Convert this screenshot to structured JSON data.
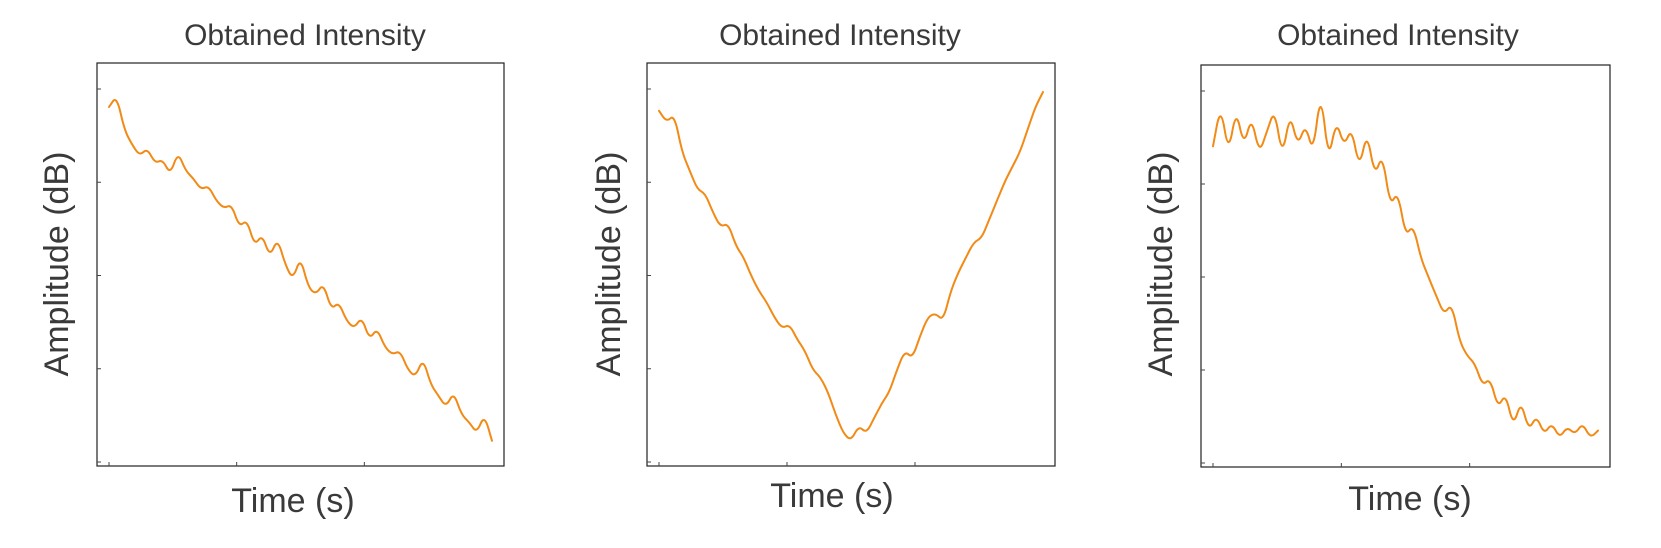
{
  "colors": {
    "series": "#f28a16",
    "frame": "#222222",
    "text": "#3a3a3a"
  },
  "chart_data": [
    {
      "type": "line",
      "title": "Obtained Intensity",
      "xlabel": "Time (s)",
      "ylabel": "Amplitude (dB)",
      "x_tick_labels": [],
      "y_tick_labels": [],
      "grid": false,
      "series": [
        {
          "values": [
            0.92,
            0.95,
            0.86,
            0.82,
            0.79,
            0.81,
            0.77,
            0.78,
            0.74,
            0.8,
            0.75,
            0.73,
            0.7,
            0.71,
            0.67,
            0.65,
            0.66,
            0.6,
            0.62,
            0.55,
            0.58,
            0.52,
            0.57,
            0.5,
            0.46,
            0.52,
            0.44,
            0.42,
            0.45,
            0.38,
            0.4,
            0.35,
            0.33,
            0.36,
            0.3,
            0.33,
            0.28,
            0.26,
            0.27,
            0.22,
            0.2,
            0.25,
            0.18,
            0.15,
            0.12,
            0.16,
            0.1,
            0.08,
            0.05,
            0.1,
            0.03
          ]
        }
      ]
    },
    {
      "type": "line",
      "title": "Obtained Intensity",
      "xlabel": "Time (s)",
      "ylabel": "Amplitude (dB)",
      "x_tick_labels": [],
      "y_tick_labels": [],
      "grid": false,
      "series": [
        {
          "values": [
            0.91,
            0.88,
            0.9,
            0.8,
            0.75,
            0.7,
            0.69,
            0.64,
            0.6,
            0.61,
            0.55,
            0.52,
            0.47,
            0.43,
            0.4,
            0.36,
            0.33,
            0.34,
            0.3,
            0.27,
            0.22,
            0.2,
            0.16,
            0.1,
            0.05,
            0.03,
            0.07,
            0.05,
            0.09,
            0.13,
            0.16,
            0.22,
            0.27,
            0.25,
            0.31,
            0.36,
            0.37,
            0.35,
            0.43,
            0.48,
            0.52,
            0.56,
            0.57,
            0.62,
            0.67,
            0.72,
            0.76,
            0.8,
            0.86,
            0.92,
            0.96
          ]
        }
      ]
    },
    {
      "type": "line",
      "title": "Obtained Intensity",
      "xlabel": "Time (s)",
      "ylabel": "Amplitude (dB)",
      "x_tick_labels": [],
      "y_tick_labels": [],
      "grid": false,
      "series": [
        {
          "values": [
            0.82,
            0.93,
            0.8,
            0.92,
            0.82,
            0.9,
            0.8,
            0.86,
            0.92,
            0.79,
            0.91,
            0.82,
            0.88,
            0.8,
            0.97,
            0.78,
            0.89,
            0.82,
            0.87,
            0.76,
            0.86,
            0.74,
            0.8,
            0.66,
            0.7,
            0.58,
            0.61,
            0.52,
            0.47,
            0.42,
            0.37,
            0.4,
            0.3,
            0.26,
            0.24,
            0.18,
            0.2,
            0.12,
            0.16,
            0.07,
            0.14,
            0.06,
            0.1,
            0.05,
            0.08,
            0.04,
            0.07,
            0.05,
            0.08,
            0.04,
            0.06
          ]
        }
      ]
    }
  ]
}
